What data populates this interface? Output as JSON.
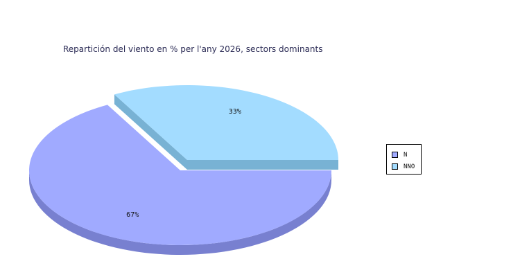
{
  "chart_data": {
    "type": "pie",
    "title": "Repartición del viento en % per l'any 2026, sectors dominants",
    "labels": [
      "N",
      "NNO"
    ],
    "values": [
      67,
      33
    ],
    "value_labels": [
      "67%",
      "33%"
    ],
    "colors": [
      "#a0aaff",
      "#a3dcff"
    ],
    "side_colors": [
      "#7880d0",
      "#78b2d4"
    ],
    "exploded": [
      "NNO"
    ],
    "style": "3d",
    "legend": "right"
  }
}
